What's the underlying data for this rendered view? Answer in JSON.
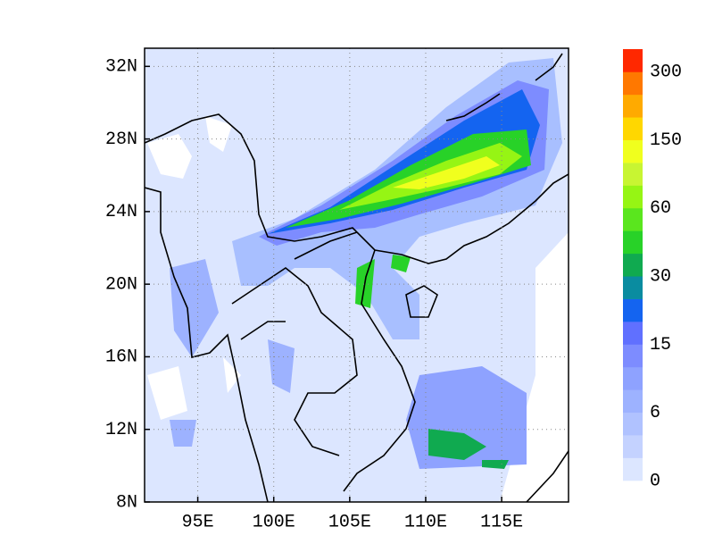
{
  "chart_data": {
    "type": "map",
    "xlim": [
      91.5,
      119.4
    ],
    "ylim": [
      8,
      33
    ],
    "xticks": [
      {
        "value": 95,
        "label": "95E"
      },
      {
        "value": 100,
        "label": "100E"
      },
      {
        "value": 105,
        "label": "105E"
      },
      {
        "value": 110,
        "label": "110E"
      },
      {
        "value": 115,
        "label": "115E"
      }
    ],
    "yticks": [
      {
        "value": 8,
        "label": "8N"
      },
      {
        "value": 12,
        "label": "12N"
      },
      {
        "value": 16,
        "label": "16N"
      },
      {
        "value": 20,
        "label": "20N"
      },
      {
        "value": 24,
        "label": "24N"
      },
      {
        "value": 28,
        "label": "28N"
      },
      {
        "value": 32,
        "label": "32N"
      }
    ],
    "grid": true,
    "colorbar": {
      "colors": [
        "#dce6ff",
        "#c4d2ff",
        "#b0c2ff",
        "#9db2ff",
        "#8ea2ff",
        "#7d8cff",
        "#6070ff",
        "#1464f0",
        "#0a8ca0",
        "#10aa50",
        "#28d228",
        "#5ae61e",
        "#96f514",
        "#c8f532",
        "#f0ff1e",
        "#ffd700",
        "#ffaa00",
        "#ff7800",
        "#ff2800"
      ],
      "labels": [
        0,
        6,
        15,
        30,
        60,
        150,
        300
      ]
    }
  }
}
